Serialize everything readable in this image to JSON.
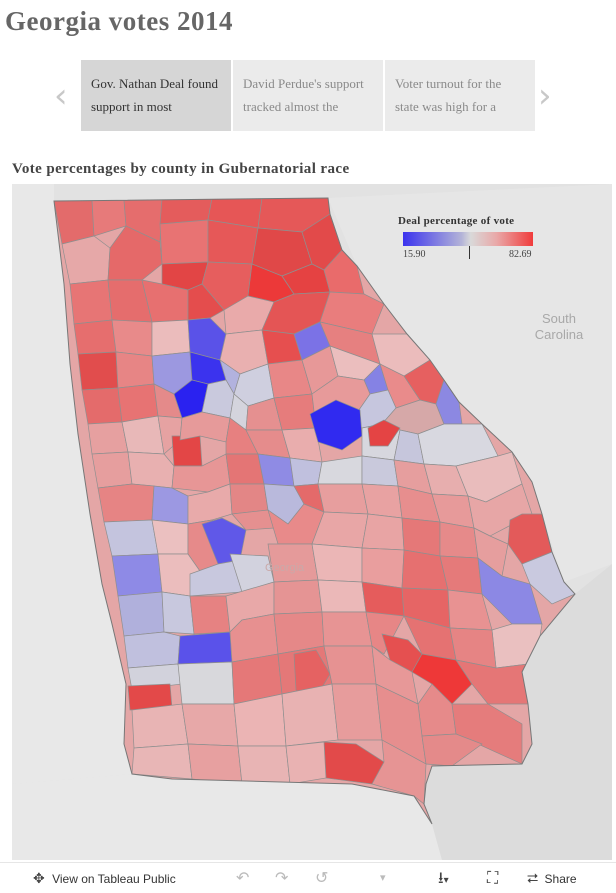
{
  "title": "Georgia  votes  2014",
  "story_points": [
    {
      "label": "Gov. Nathan Deal found support in most",
      "active": true
    },
    {
      "label": "David Perdue's support tracked almost the",
      "active": false
    },
    {
      "label": "Voter turnout for the state was high for a",
      "active": false
    }
  ],
  "nav": {
    "prev_icon": "chevron-left-icon",
    "next_icon": "chevron-right-icon"
  },
  "map": {
    "subtitle": "Vote percentages by county in Gubernatorial race",
    "neighbor_label_line1": "South",
    "neighbor_label_line2": "Carolina",
    "state_label": "Georgia",
    "legend": {
      "title": "Deal  percentage  of  vote",
      "min": "15.90",
      "max": "82.69",
      "low_color": "#3b33ee",
      "high_color": "#f03c3c"
    }
  },
  "toolbar": {
    "view_on": "View on Tableau Public",
    "share": "Share",
    "icons": [
      "tableau-logo-icon",
      "undo-icon",
      "redo-icon",
      "revert-icon",
      "dropdown-icon",
      "download-icon",
      "fullscreen-icon",
      "share-icon"
    ]
  }
}
